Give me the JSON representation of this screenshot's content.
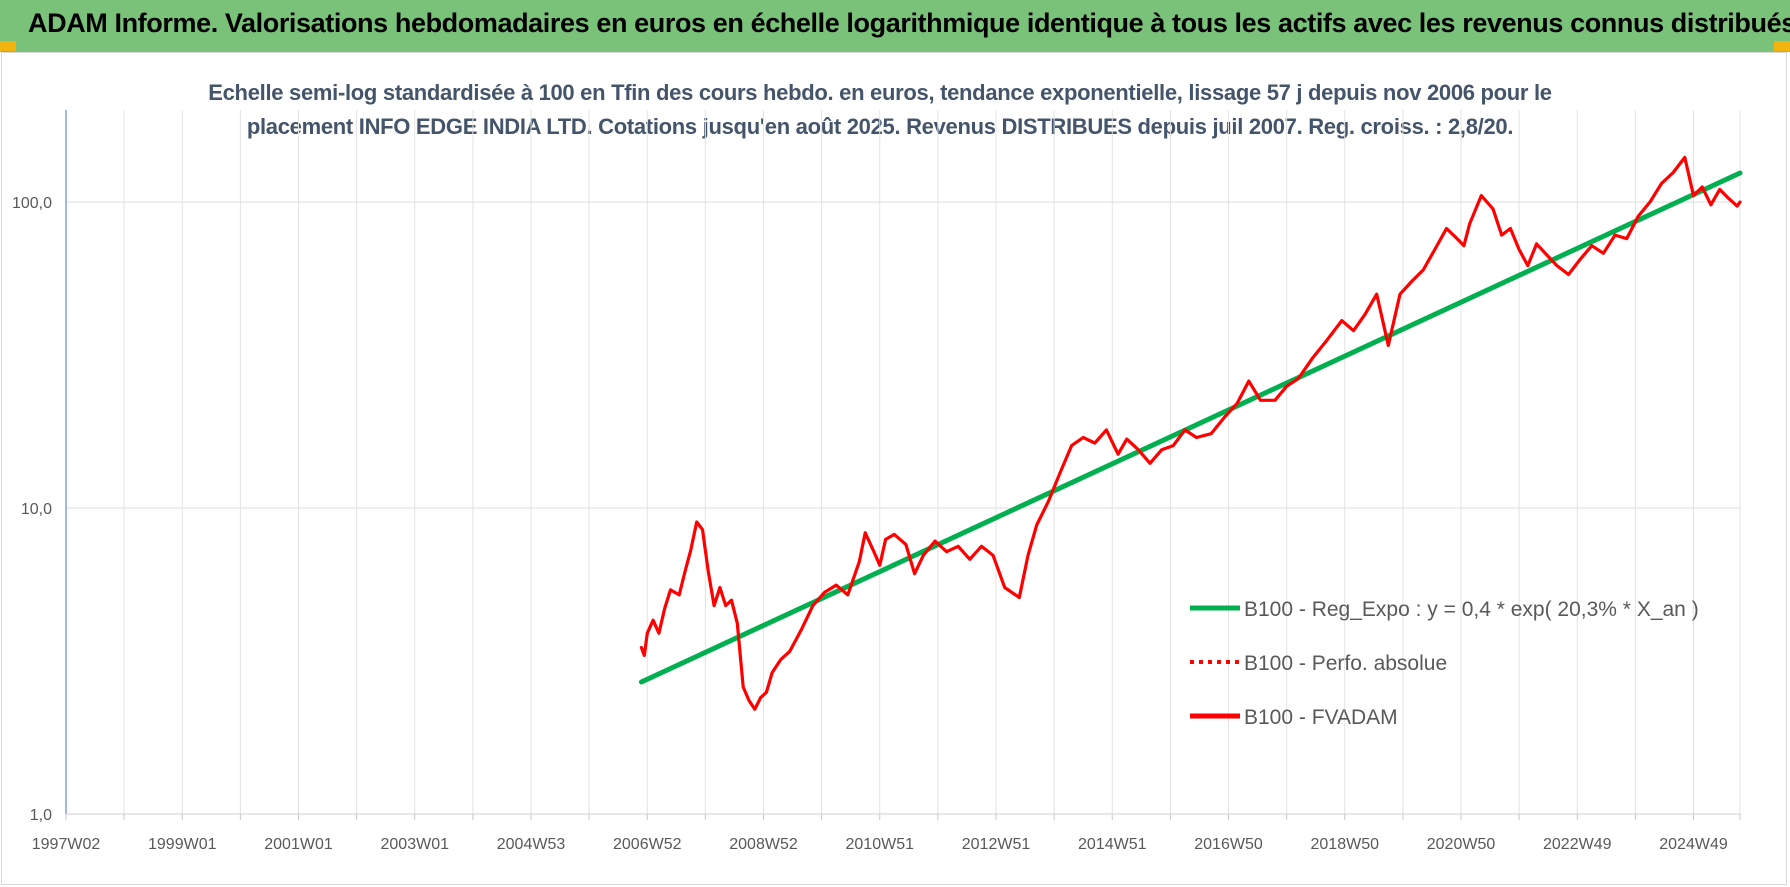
{
  "header": {
    "title": "ADAM Informe. Valorisations hebdomadaires en euros en échelle logarithmique identique à tous les actifs avec les revenus connus distribués",
    "background_color": "#7ac27a",
    "corner_color": "#f2b50f"
  },
  "chart_data": {
    "type": "line",
    "title": "Echelle semi-log standardisée à 100 en Tfin des cours hebdo. en euros, tendance exponentielle, lissage 57 j depuis nov 2006 pour le placement INFO EDGE INDIA LTD. Cotations jusqu'en août 2025. Revenus DISTRIBUES depuis juil 2007. Reg. croiss. : 2,8/20.",
    "title_lines": [
      "Echelle semi-log standardisée à 100 en Tfin des cours hebdo. en euros, tendance exponentielle, lissage 57 j depuis nov 2006 pour le",
      "placement INFO EDGE INDIA LTD. Cotations jusqu'en août 2025. Revenus DISTRIBUES depuis juil 2007. Reg. croiss. : 2,8/20."
    ],
    "y_scale": "log",
    "ylim": [
      1,
      200
    ],
    "xlim": [
      1997.05,
      2025.85
    ],
    "grid": true,
    "legend_position": "right",
    "y_ticks": [
      {
        "value": 1,
        "label": "1,0"
      },
      {
        "value": 10,
        "label": "10,0"
      },
      {
        "value": 100,
        "label": "100,0"
      }
    ],
    "x_ticks": [
      {
        "value": 1997.05,
        "label": "1997W02"
      },
      {
        "value": 1999.05,
        "label": "1999W01"
      },
      {
        "value": 2001.05,
        "label": "2001W01"
      },
      {
        "value": 2003.05,
        "label": "2003W01"
      },
      {
        "value": 2005.05,
        "label": "2004W53"
      },
      {
        "value": 2007.05,
        "label": "2006W52"
      },
      {
        "value": 2009.05,
        "label": "2008W52"
      },
      {
        "value": 2011.05,
        "label": "2010W51"
      },
      {
        "value": 2013.05,
        "label": "2012W51"
      },
      {
        "value": 2015.05,
        "label": "2014W51"
      },
      {
        "value": 2017.05,
        "label": "2016W50"
      },
      {
        "value": 2019.05,
        "label": "2018W50"
      },
      {
        "value": 2021.05,
        "label": "2020W50"
      },
      {
        "value": 2023.05,
        "label": "2022W49"
      },
      {
        "value": 2025.05,
        "label": "2024W49"
      }
    ],
    "x_minor_ticks": [
      1998.05,
      2000.05,
      2002.05,
      2004.05,
      2006.05,
      2008.05,
      2010.05,
      2012.05,
      2014.05,
      2016.05,
      2018.05,
      2020.05,
      2022.05,
      2024.05
    ],
    "series": [
      {
        "name": "B100 - Reg_Expo : y = 0,4 * exp( 20,3% *  X_an )",
        "color": "#00b050",
        "style": "solid",
        "x": [
          2006.95,
          2025.85
        ],
        "y": [
          2.7,
          124.5
        ]
      },
      {
        "name": "B100 - Perfo. absolue",
        "color": "#ff0000",
        "style": "dotted",
        "x": [],
        "y": []
      },
      {
        "name": "B100 - FVADAM",
        "color": "#ff0000",
        "style": "solid",
        "x": [
          2006.95,
          2007.0,
          2007.05,
          2007.15,
          2007.25,
          2007.35,
          2007.45,
          2007.6,
          2007.7,
          2007.8,
          2007.9,
          2008.0,
          2008.1,
          2008.2,
          2008.3,
          2008.4,
          2008.5,
          2008.6,
          2008.7,
          2008.8,
          2008.9,
          2009.0,
          2009.1,
          2009.2,
          2009.35,
          2009.5,
          2009.7,
          2009.9,
          2010.1,
          2010.3,
          2010.5,
          2010.7,
          2010.8,
          2010.95,
          2011.05,
          2011.15,
          2011.3,
          2011.5,
          2011.65,
          2011.8,
          2012.0,
          2012.2,
          2012.4,
          2012.6,
          2012.8,
          2013.0,
          2013.2,
          2013.45,
          2013.6,
          2013.75,
          2013.95,
          2014.15,
          2014.35,
          2014.55,
          2014.75,
          2014.95,
          2015.15,
          2015.3,
          2015.5,
          2015.7,
          2015.9,
          2016.1,
          2016.3,
          2016.5,
          2016.75,
          2017.0,
          2017.2,
          2017.4,
          2017.6,
          2017.85,
          2018.05,
          2018.25,
          2018.5,
          2018.75,
          2019.0,
          2019.2,
          2019.4,
          2019.6,
          2019.8,
          2020.0,
          2020.2,
          2020.4,
          2020.6,
          2020.8,
          2020.95,
          2021.1,
          2021.2,
          2021.4,
          2021.6,
          2021.75,
          2021.9,
          2022.05,
          2022.2,
          2022.35,
          2022.5,
          2022.7,
          2022.9,
          2023.1,
          2023.3,
          2023.5,
          2023.7,
          2023.9,
          2024.1,
          2024.3,
          2024.5,
          2024.7,
          2024.9,
          2025.05,
          2025.2,
          2025.35,
          2025.5,
          2025.65,
          2025.8,
          2025.85
        ],
        "y": [
          3.5,
          3.3,
          3.9,
          4.3,
          3.9,
          4.7,
          5.4,
          5.2,
          6.2,
          7.3,
          9.0,
          8.5,
          6.2,
          4.8,
          5.5,
          4.8,
          5.0,
          4.2,
          2.6,
          2.35,
          2.2,
          2.4,
          2.5,
          2.9,
          3.2,
          3.4,
          4.0,
          4.8,
          5.3,
          5.6,
          5.2,
          6.7,
          8.3,
          7.2,
          6.5,
          7.9,
          8.2,
          7.6,
          6.1,
          7.0,
          7.8,
          7.2,
          7.5,
          6.8,
          7.5,
          7.0,
          5.5,
          5.1,
          7.0,
          8.8,
          10.5,
          13.0,
          16.0,
          17.0,
          16.3,
          18.0,
          15.0,
          16.8,
          15.5,
          14.0,
          15.5,
          16.0,
          18.0,
          17.0,
          17.5,
          20.0,
          22.0,
          26.0,
          22.5,
          22.5,
          25.0,
          26.5,
          31.0,
          35.5,
          41.0,
          38.0,
          43.0,
          50.0,
          34.0,
          50.0,
          55.0,
          60.0,
          70.0,
          82.0,
          77.0,
          72.0,
          85.0,
          105.0,
          95.0,
          78.0,
          82.0,
          70.0,
          62.0,
          73.0,
          68.0,
          62.0,
          58.0,
          65.0,
          72.0,
          68.0,
          78.0,
          76.0,
          90.0,
          100.0,
          115.0,
          125.0,
          140.0,
          105.0,
          112.0,
          98.0,
          110.0,
          103.0,
          97.0,
          100.0
        ]
      }
    ]
  }
}
